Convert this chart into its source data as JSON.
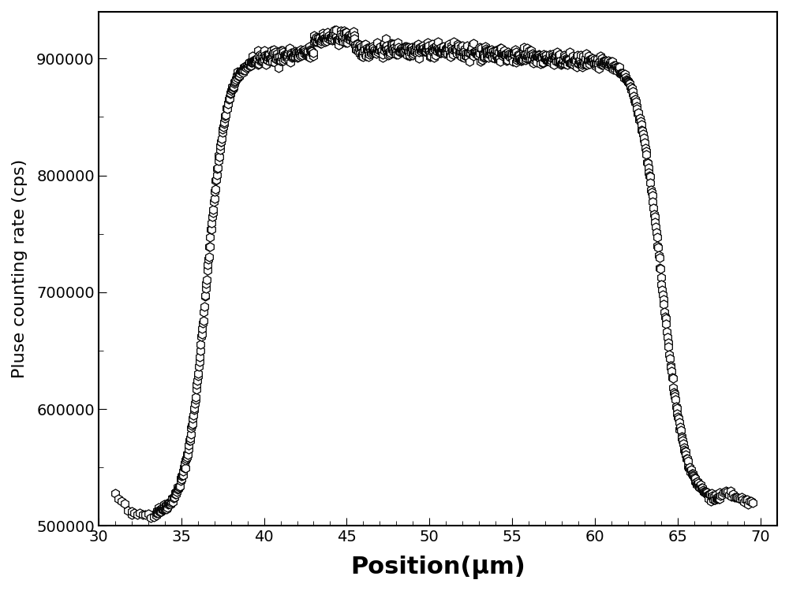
{
  "title": "",
  "xlabel": "Position(μm)",
  "ylabel": "Pluse counting rate (cps)",
  "xlim": [
    30,
    71
  ],
  "ylim": [
    500000,
    940000
  ],
  "xticks": [
    30,
    35,
    40,
    45,
    50,
    55,
    60,
    65,
    70
  ],
  "yticks": [
    500000,
    600000,
    700000,
    800000,
    900000
  ],
  "marker": "h",
  "markersize": 8,
  "color": "black",
  "facecolor": "white",
  "linewidth": 0,
  "xlabel_fontsize": 22,
  "ylabel_fontsize": 16,
  "tick_fontsize": 14,
  "xlabel_fontweight": "bold"
}
